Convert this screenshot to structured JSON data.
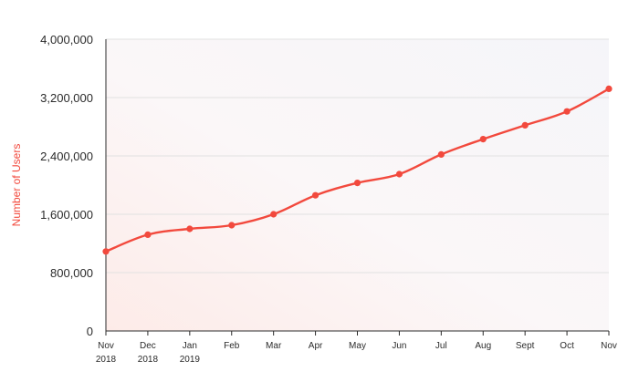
{
  "chart_data": {
    "type": "line",
    "title": "",
    "xlabel": "",
    "ylabel": "Number of Users",
    "categories": [
      [
        "Nov",
        "2018"
      ],
      [
        "Dec",
        "2018"
      ],
      [
        "Jan",
        "2019"
      ],
      [
        "Feb"
      ],
      [
        "Mar"
      ],
      [
        "Apr"
      ],
      [
        "May"
      ],
      [
        "Jun"
      ],
      [
        "Jul"
      ],
      [
        "Aug"
      ],
      [
        "Sept"
      ],
      [
        "Oct"
      ],
      [
        "Nov"
      ]
    ],
    "series": [
      {
        "values": [
          1090000,
          1320000,
          1400000,
          1450000,
          1600000,
          1860000,
          2030000,
          2150000,
          2420000,
          2630000,
          2820000,
          3010000,
          3320000
        ]
      }
    ],
    "ylim": [
      0,
      4000000
    ],
    "yticks": [
      0,
      800000,
      1600000,
      2400000,
      3200000,
      4000000
    ],
    "ytick_labels": [
      "0",
      "800,000",
      "1,600,000",
      "2,400,000",
      "3,200,000",
      "4,000,000"
    ],
    "grid": true,
    "colors": {
      "line": "#f2493d",
      "grid": "#e1e1e1",
      "axis": "#2b2b2b",
      "ylabel": "#f2493d"
    }
  }
}
